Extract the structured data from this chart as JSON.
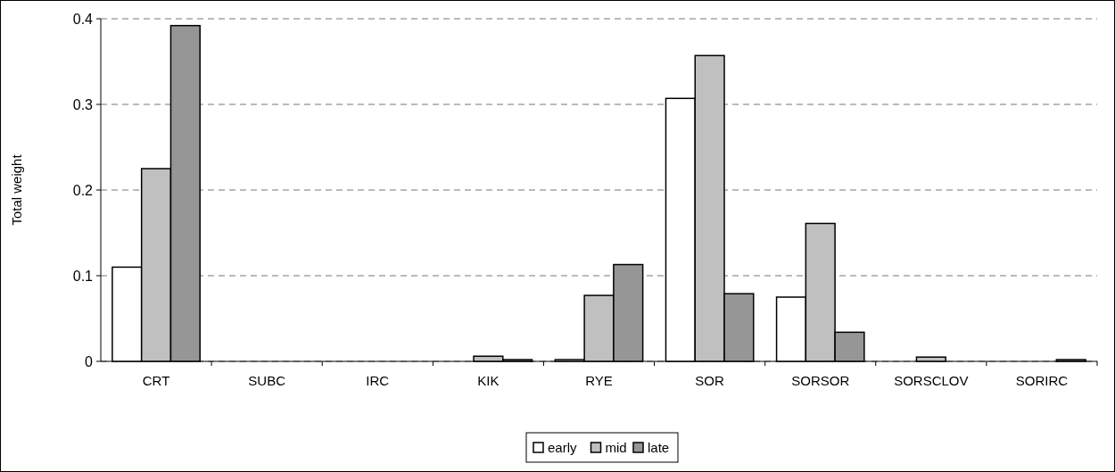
{
  "chart_data": {
    "type": "bar",
    "ylabel": "Total weight",
    "categories": [
      "CRT",
      "SUBC",
      "IRC",
      "KIK",
      "RYE",
      "SOR",
      "SORSOR",
      "SORSCLOV",
      "SORIRC"
    ],
    "series": [
      {
        "name": "early",
        "color": "#ffffff",
        "values": [
          0.11,
          0,
          0,
          0,
          0.002,
          0.307,
          0.075,
          0,
          0
        ]
      },
      {
        "name": "mid",
        "color": "#c0c0c0",
        "values": [
          0.225,
          0,
          0,
          0.006,
          0.077,
          0.357,
          0.161,
          0.005,
          0
        ]
      },
      {
        "name": "late",
        "color": "#969696",
        "values": [
          0.392,
          0,
          0,
          0.002,
          0.113,
          0.079,
          0.034,
          0,
          0.002
        ]
      }
    ],
    "ylim": [
      0,
      0.4
    ],
    "yticks": [
      0,
      0.1,
      0.2,
      0.3,
      0.4
    ],
    "grid": "y",
    "legend": "bottom"
  }
}
